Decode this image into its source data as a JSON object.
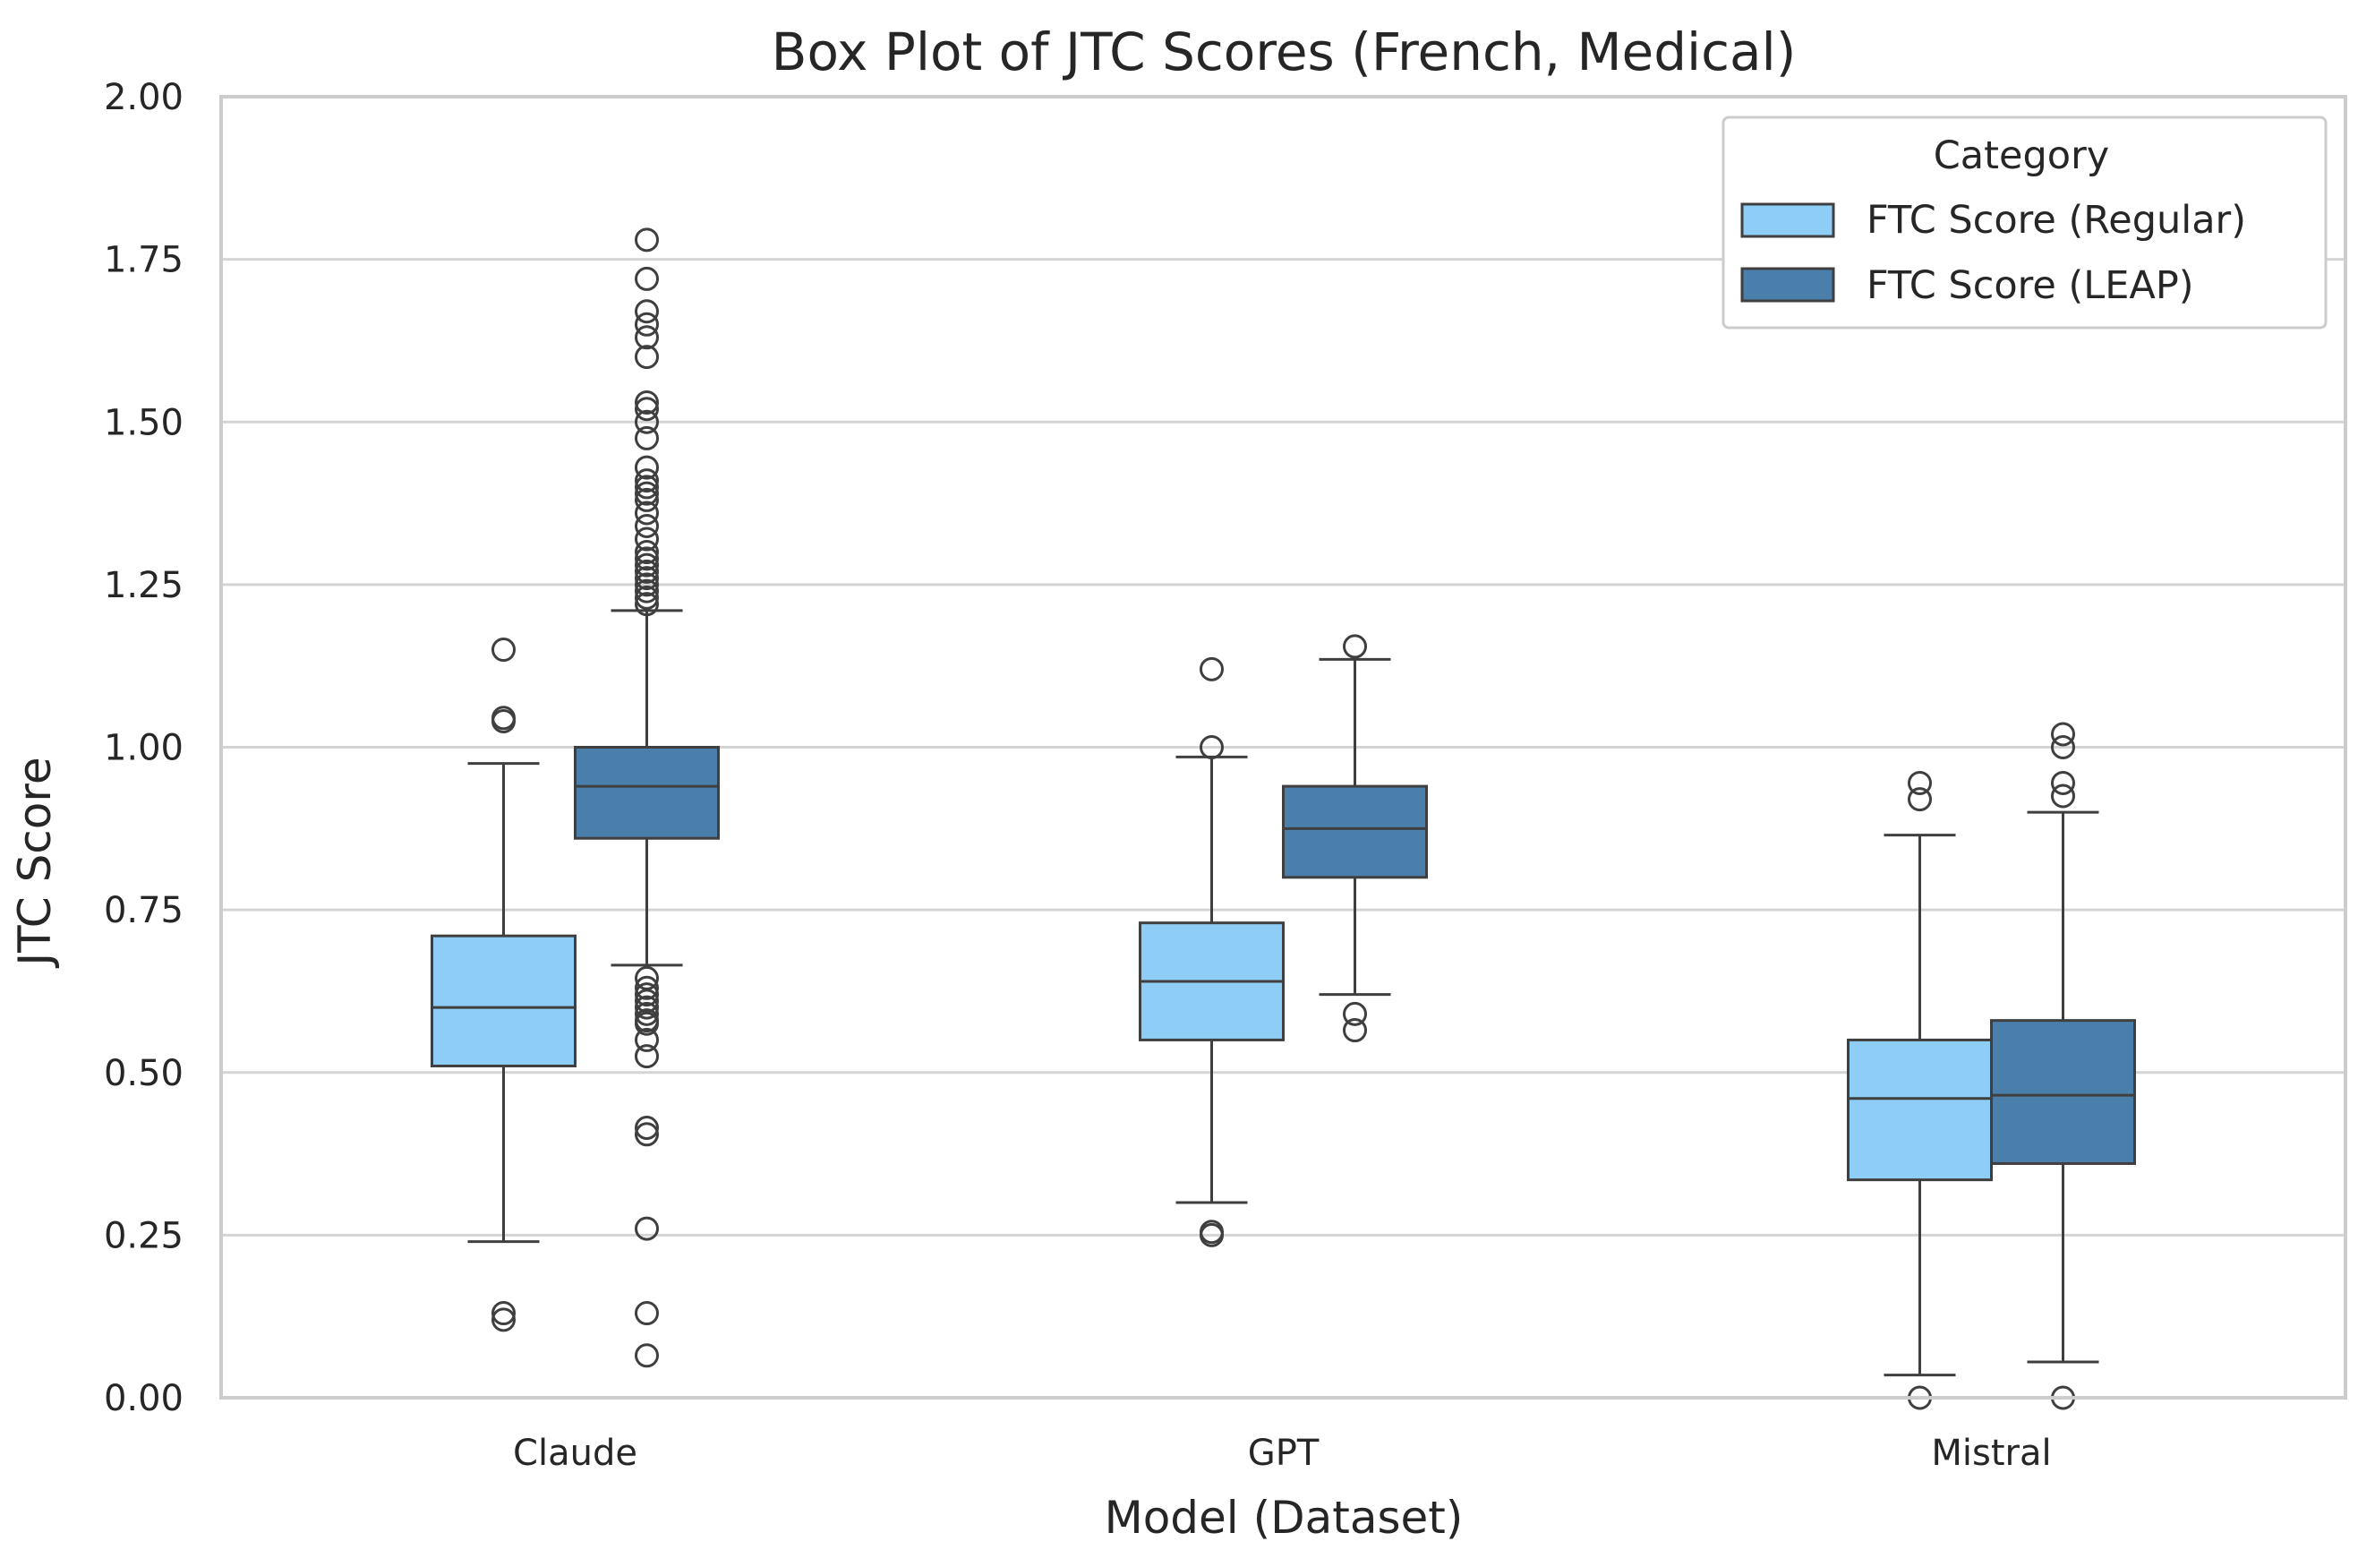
{
  "chart_data": {
    "type": "box",
    "title": "Box Plot of JTC Scores (French, Medical)",
    "xlabel": "Model (Dataset)",
    "ylabel": "JTC Score",
    "ylim": [
      0,
      2
    ],
    "yticks": [
      "0.00",
      "0.25",
      "0.50",
      "0.75",
      "1.00",
      "1.25",
      "1.50",
      "1.75",
      "2.00"
    ],
    "grid": "horizontal",
    "categories": [
      "Claude",
      "GPT",
      "Mistral"
    ],
    "legend": {
      "title": "Category",
      "placement": "top-right"
    },
    "series": [
      {
        "name": "FTC Score (Regular)",
        "color": "#8ecdf5",
        "boxes": [
          {
            "whisker_low": 0.24,
            "q1": 0.51,
            "median": 0.6,
            "q3": 0.71,
            "whisker_high": 0.975,
            "outliers": [
              0.12,
              0.13,
              1.04,
              1.045,
              1.15
            ]
          },
          {
            "whisker_low": 0.3,
            "q1": 0.55,
            "median": 0.64,
            "q3": 0.73,
            "whisker_high": 0.985,
            "outliers": [
              0.25,
              0.255,
              1.0,
              1.12
            ]
          },
          {
            "whisker_low": 0.035,
            "q1": 0.335,
            "median": 0.46,
            "q3": 0.55,
            "whisker_high": 0.865,
            "outliers": [
              0.0,
              0.92,
              0.945
            ]
          }
        ]
      },
      {
        "name": "FTC Score (LEAP)",
        "color": "#4a7fab",
        "boxes": [
          {
            "whisker_low": 0.665,
            "q1": 0.86,
            "median": 0.94,
            "q3": 1.0,
            "whisker_high": 1.21,
            "outliers": [
              0.065,
              0.13,
              0.26,
              0.405,
              0.415,
              0.525,
              0.55,
              0.575,
              0.58,
              0.59,
              0.6,
              0.61,
              0.62,
              0.63,
              0.645,
              1.22,
              1.23,
              1.24,
              1.25,
              1.26,
              1.27,
              1.28,
              1.29,
              1.3,
              1.32,
              1.34,
              1.36,
              1.38,
              1.39,
              1.4,
              1.41,
              1.43,
              1.475,
              1.5,
              1.52,
              1.53,
              1.6,
              1.63,
              1.65,
              1.67,
              1.72,
              1.78
            ]
          },
          {
            "whisker_low": 0.62,
            "q1": 0.8,
            "median": 0.875,
            "q3": 0.94,
            "whisker_high": 1.135,
            "outliers": [
              0.565,
              0.59,
              1.155
            ]
          },
          {
            "whisker_low": 0.055,
            "q1": 0.36,
            "median": 0.465,
            "q3": 0.58,
            "whisker_high": 0.9,
            "outliers": [
              0.0,
              0.925,
              0.945,
              1.0,
              1.02
            ]
          }
        ]
      }
    ]
  }
}
